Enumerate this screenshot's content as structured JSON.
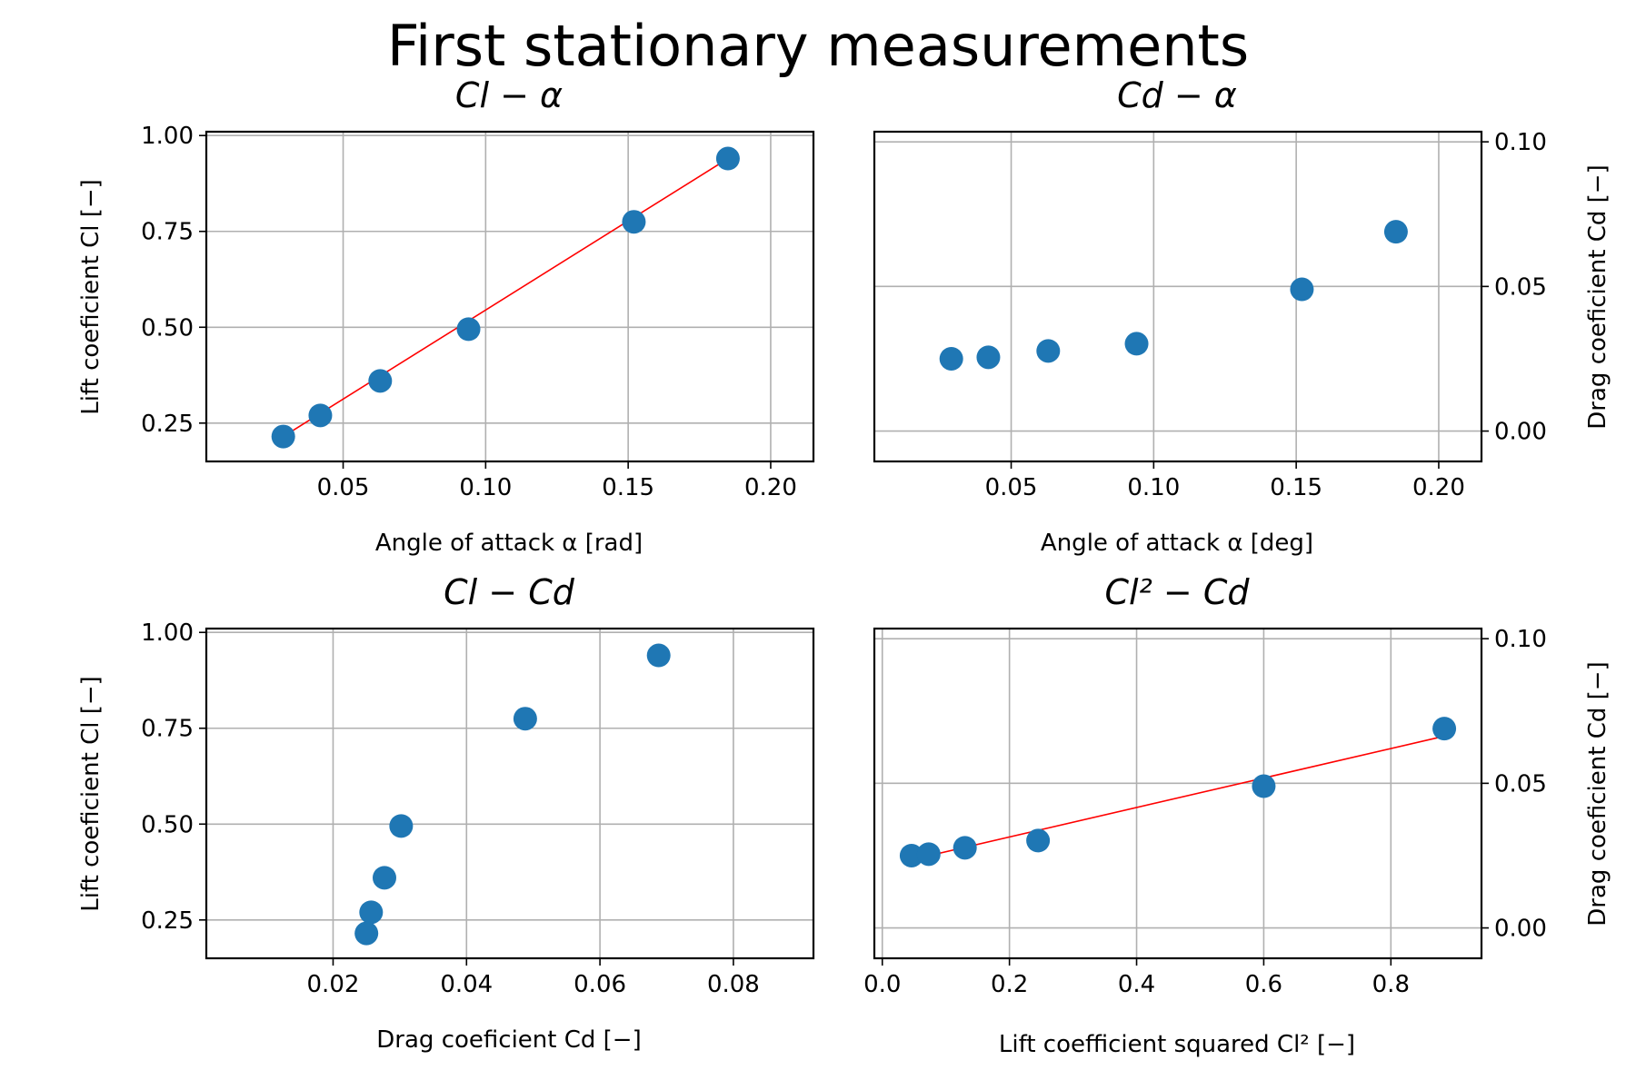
{
  "figure": {
    "title": "First stationary measurements"
  },
  "colors": {
    "points": "#1f77b4",
    "fit": "#ff0000",
    "grid": "#b0b0b0",
    "frame": "#000000"
  },
  "chart_data": [
    {
      "type": "scatter",
      "title": "Cl − α",
      "xlabel": "Angle of attack α [rad]",
      "ylabel": "Lift coeficient Cl [−]",
      "yaxis_side": "left",
      "xlim": [
        0.002,
        0.215
      ],
      "ylim": [
        0.15,
        1.01
      ],
      "xticks": [
        "0.05",
        "0.10",
        "0.15",
        "0.20"
      ],
      "yticks": [
        "0.25",
        "0.50",
        "0.75",
        "1.00"
      ],
      "grid": true,
      "points": {
        "x": [
          0.029,
          0.042,
          0.063,
          0.094,
          0.152,
          0.185
        ],
        "y": [
          0.215,
          0.27,
          0.36,
          0.495,
          0.775,
          0.94
        ]
      },
      "fit_line": {
        "x": [
          0.029,
          0.185
        ],
        "y": [
          0.215,
          0.94
        ]
      }
    },
    {
      "type": "scatter",
      "title": "Cd − α",
      "xlabel": "Angle of attack α [deg]",
      "ylabel": "Drag coeficient Cd [−]",
      "yaxis_side": "right",
      "xlim": [
        0.002,
        0.215
      ],
      "ylim": [
        -0.0105,
        0.1035
      ],
      "xticks": [
        "0.05",
        "0.10",
        "0.15",
        "0.20"
      ],
      "yticks": [
        "0.00",
        "0.05",
        "0.10"
      ],
      "grid": true,
      "points": {
        "x": [
          0.029,
          0.042,
          0.063,
          0.094,
          0.152,
          0.185
        ],
        "y": [
          0.025,
          0.0255,
          0.0277,
          0.0302,
          0.049,
          0.0689
        ]
      }
    },
    {
      "type": "scatter",
      "title": "Cl − Cd",
      "xlabel": "Drag coeficient Cd [−]",
      "ylabel": "Lift coeficient Cl [−]",
      "yaxis_side": "left",
      "xlim": [
        0.001,
        0.092
      ],
      "ylim": [
        0.15,
        1.01
      ],
      "xticks": [
        "0.02",
        "0.04",
        "0.06",
        "0.08"
      ],
      "yticks": [
        "0.25",
        "0.50",
        "0.75",
        "1.00"
      ],
      "grid": true,
      "points": {
        "x": [
          0.025,
          0.0257,
          0.0277,
          0.0302,
          0.0488,
          0.0688
        ],
        "y": [
          0.215,
          0.27,
          0.36,
          0.495,
          0.775,
          0.94
        ]
      }
    },
    {
      "type": "scatter",
      "title": "Cl² − Cd",
      "xlabel": "Lift coefficient squared Cl² [−]",
      "ylabel": "Drag coeficient Cd [−]",
      "yaxis_side": "right",
      "xlim": [
        -0.0125,
        0.9425
      ],
      "ylim": [
        -0.0105,
        0.1035
      ],
      "xticks": [
        "0.0",
        "0.2",
        "0.4",
        "0.6",
        "0.8"
      ],
      "yticks": [
        "0.00",
        "0.05",
        "0.10"
      ],
      "grid": true,
      "points": {
        "x": [
          0.046,
          0.073,
          0.13,
          0.245,
          0.6,
          0.884
        ],
        "y": [
          0.025,
          0.0255,
          0.0277,
          0.0302,
          0.049,
          0.0689
        ]
      },
      "fit_line": {
        "x": [
          0.046,
          0.884
        ],
        "y": [
          0.0236,
          0.0663
        ]
      }
    }
  ]
}
